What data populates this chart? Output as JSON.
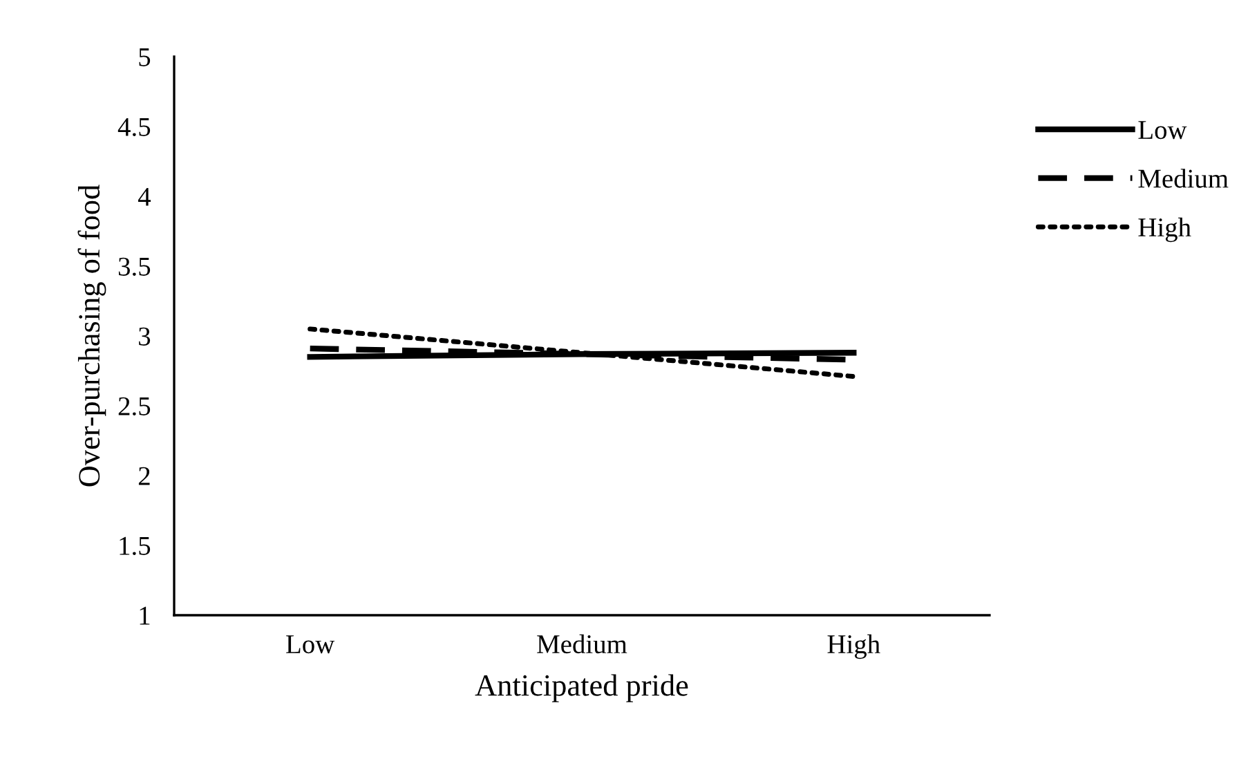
{
  "chart_data": {
    "type": "line",
    "xlabel": "Anticipated pride",
    "ylabel": "Over-purchasing of food",
    "categories": [
      "Low",
      "Medium",
      "High"
    ],
    "ylim": [
      1,
      5
    ],
    "yticks": [
      1,
      1.5,
      2,
      2.5,
      3,
      3.5,
      4,
      4.5,
      5
    ],
    "grid": false,
    "legend": "right",
    "marker": "none",
    "series": [
      {
        "name": "Low",
        "color": "#000000",
        "line_style": "solid",
        "values": [
          2.85,
          2.87,
          2.88
        ]
      },
      {
        "name": "Medium",
        "color": "#000000",
        "line_style": "dashed",
        "values": [
          2.91,
          2.87,
          2.83
        ]
      },
      {
        "name": "High",
        "color": "#000000",
        "line_style": "dotted",
        "values": [
          3.05,
          2.88,
          2.71
        ]
      }
    ]
  }
}
